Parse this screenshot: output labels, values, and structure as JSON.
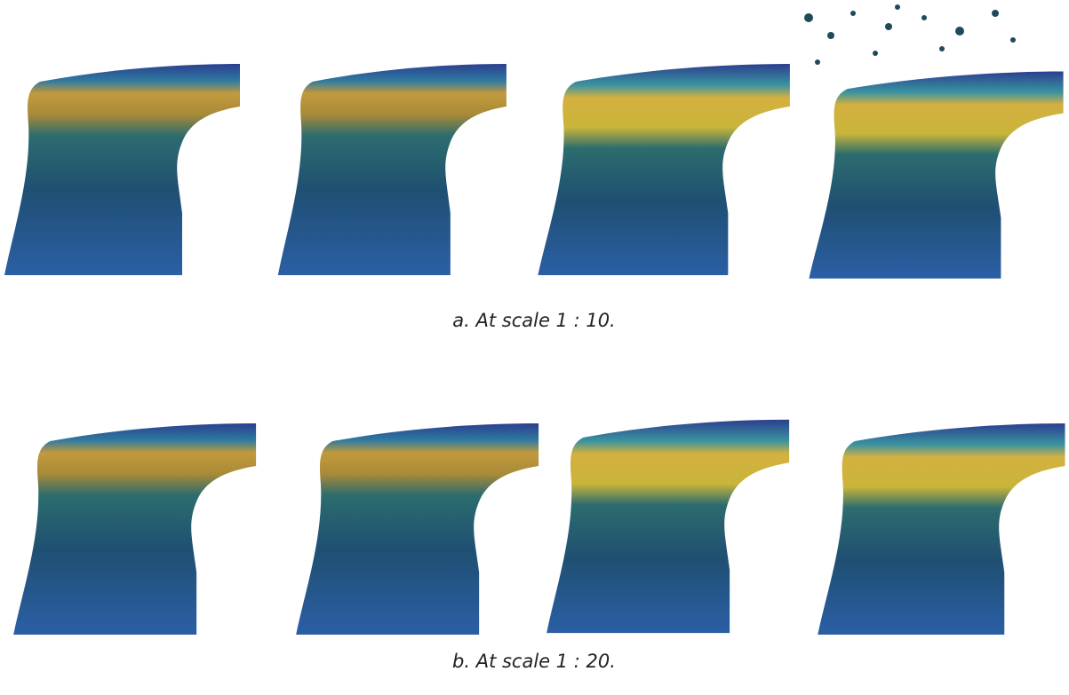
{
  "captions": [
    "a. At scale 1 : 10.",
    "b. At scale 1 : 20."
  ]
}
